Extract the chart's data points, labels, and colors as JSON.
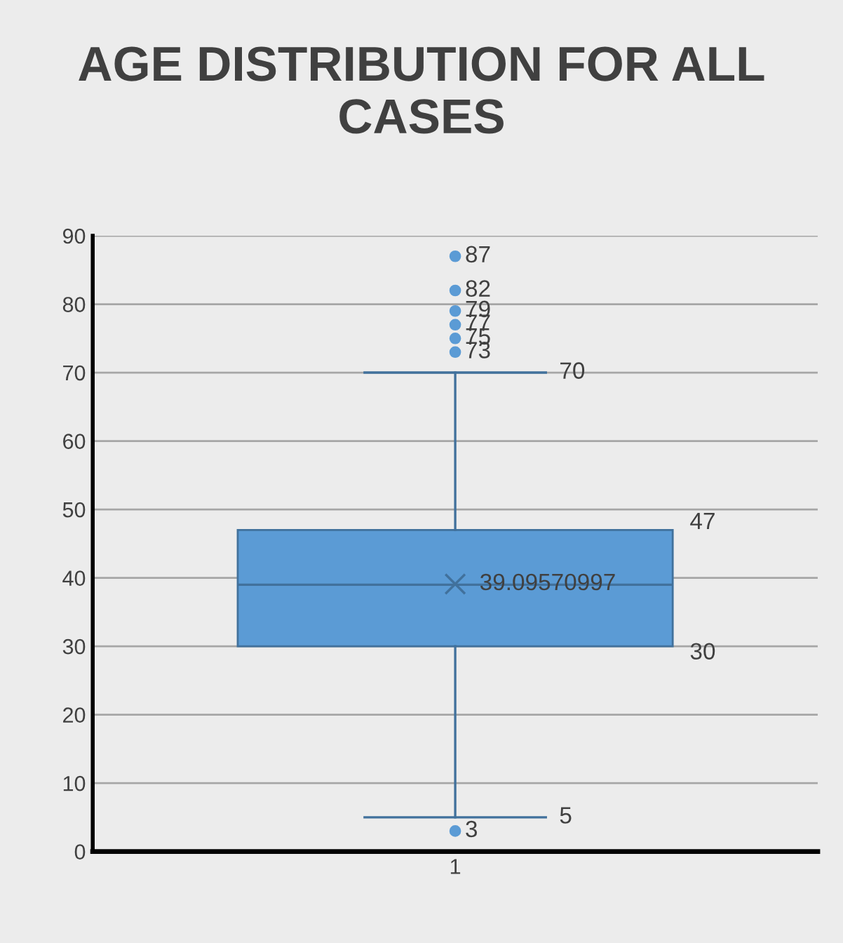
{
  "chart_data": {
    "type": "box",
    "title": "AGE DISTRIBUTION FOR ALL CASES",
    "categories": [
      "1"
    ],
    "boxes": [
      {
        "low": 5,
        "q1": 30,
        "median": 39,
        "q3": 47,
        "high": 70,
        "mean": 39.09570997,
        "outliers": [
          87,
          82,
          79,
          77,
          75,
          73,
          3
        ]
      }
    ],
    "color": "#5b9bd5",
    "ylim": [
      0,
      90
    ],
    "yticks": [
      0,
      10,
      20,
      30,
      40,
      50,
      60,
      70,
      80,
      90
    ],
    "grid": "y",
    "legend": false,
    "annotations": [
      "87",
      "82",
      "79",
      "77",
      "75",
      "73",
      "70",
      "47",
      "39.09570997",
      "30",
      "5",
      "3"
    ]
  }
}
